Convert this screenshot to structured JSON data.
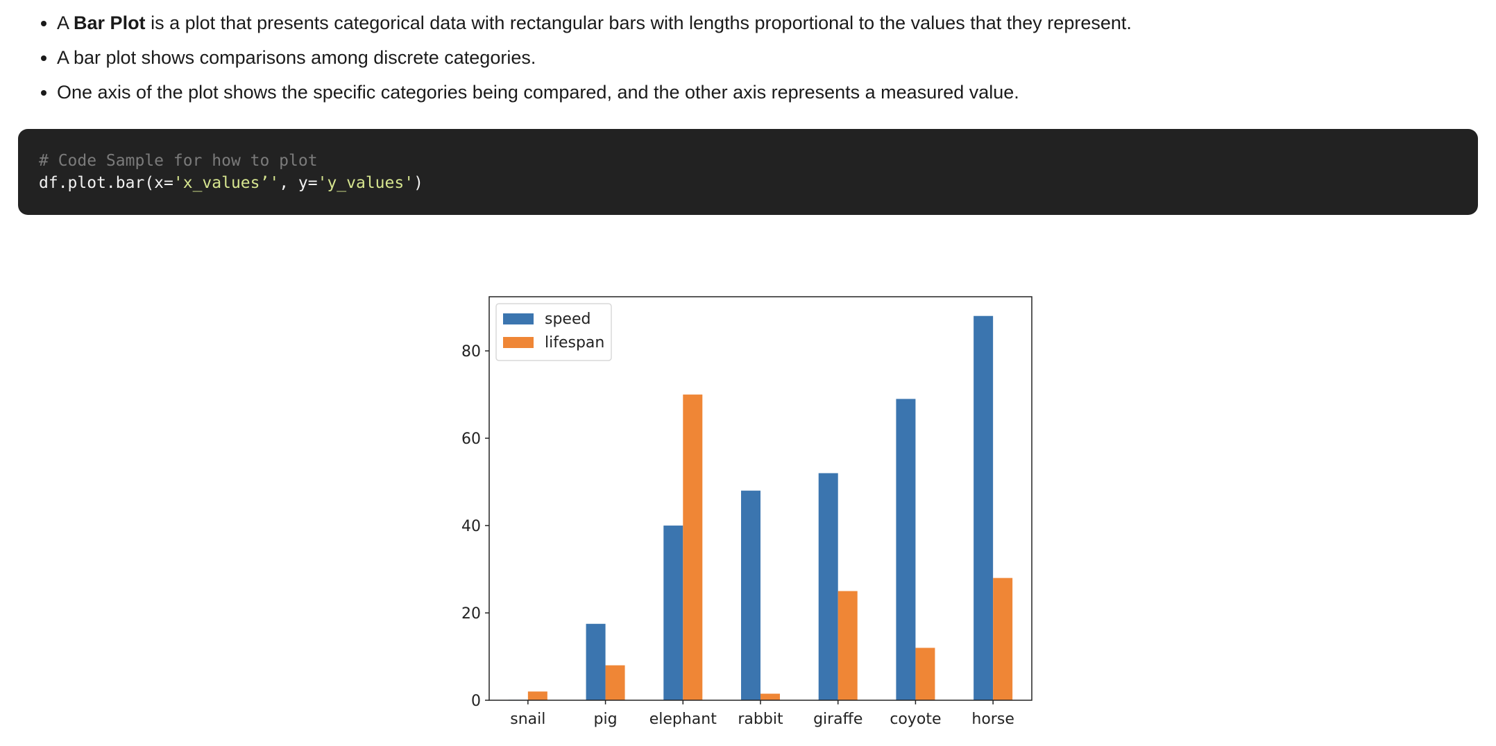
{
  "bullets": [
    {
      "prefix": "A ",
      "bold": "Bar Plot",
      "suffix": " is a plot that presents categorical data with rectangular bars with lengths proportional to the values that they represent."
    },
    {
      "prefix": "A bar plot shows comparisons among discrete categories.",
      "bold": "",
      "suffix": ""
    },
    {
      "prefix": "One axis of the plot shows the specific categories being compared, and the other axis represents a measured value.",
      "bold": "",
      "suffix": ""
    }
  ],
  "code": {
    "comment": "# Code Sample for how to plot",
    "line_prefix": "df.plot.bar(x=",
    "x_string": "'x_values’'",
    "separator": ", y=",
    "y_string": "'y_values'",
    "line_suffix": ")"
  },
  "colors": {
    "speed": "#3b75af",
    "lifespan": "#ef8636"
  },
  "chart_data": {
    "type": "bar",
    "categories": [
      "snail",
      "pig",
      "elephant",
      "rabbit",
      "giraffe",
      "coyote",
      "horse"
    ],
    "series": [
      {
        "name": "speed",
        "values": [
          0.1,
          17.5,
          40,
          48,
          52,
          69,
          88
        ]
      },
      {
        "name": "lifespan",
        "values": [
          2,
          8,
          70,
          1.5,
          25,
          12,
          28
        ]
      }
    ],
    "yticks": [
      0,
      20,
      40,
      60,
      80
    ],
    "ylim": [
      0,
      92.4
    ],
    "legend": "top-left",
    "grid": false
  }
}
